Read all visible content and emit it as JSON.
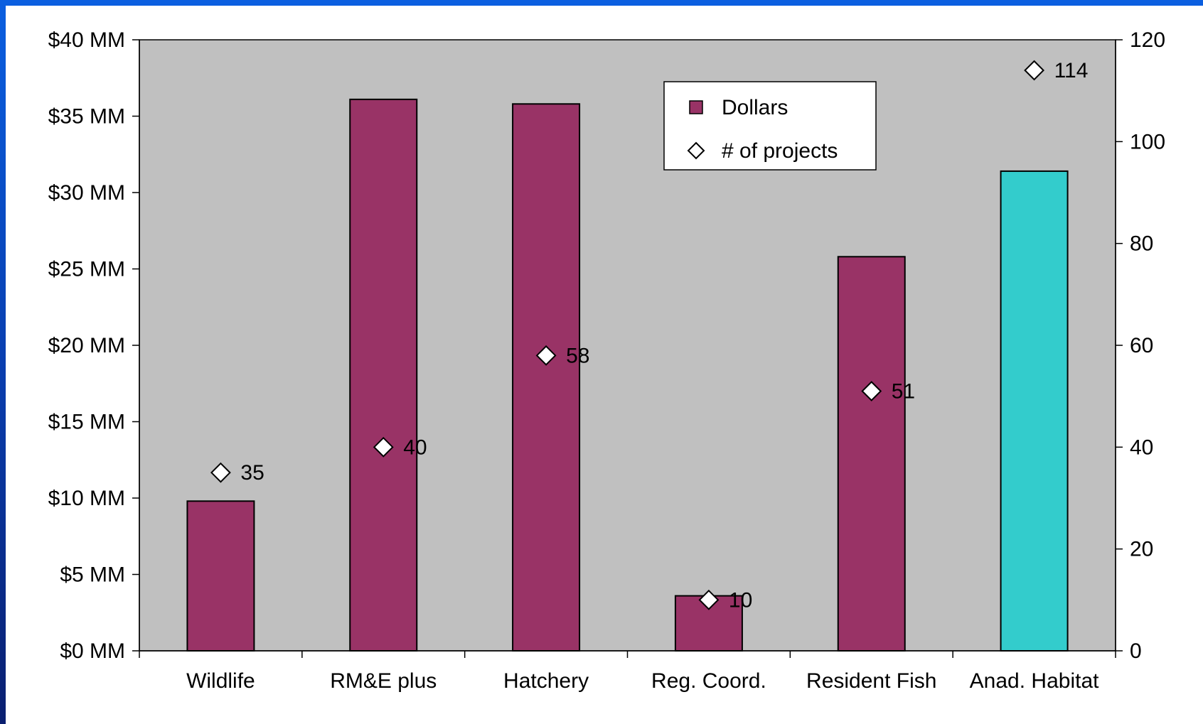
{
  "chart_data": {
    "type": "bar",
    "categories": [
      "Wildlife",
      "RM&E plus",
      "Hatchery",
      "Reg. Coord.",
      "Resident Fish",
      "Anad. Habitat"
    ],
    "series": [
      {
        "name": "Dollars",
        "type": "bar",
        "axis": "left",
        "values": [
          9.8,
          36.1,
          35.8,
          3.6,
          25.8,
          31.4
        ],
        "colors": [
          "#993366",
          "#993366",
          "#993366",
          "#993366",
          "#993366",
          "#33CCCC"
        ]
      },
      {
        "name": "# of projects",
        "type": "scatter",
        "marker": "diamond",
        "axis": "right",
        "values": [
          35,
          40,
          58,
          10,
          51,
          114
        ],
        "labels": [
          "35",
          "40",
          "58",
          "10",
          "51",
          "114"
        ]
      }
    ],
    "y_left": {
      "ylim": [
        0,
        40
      ],
      "ticks": [
        0,
        5,
        10,
        15,
        20,
        25,
        30,
        35,
        40
      ],
      "tick_labels": [
        "$0 MM",
        "$5 MM",
        "$10 MM",
        "$15 MM",
        "$20 MM",
        "$25 MM",
        "$30 MM",
        "$35 MM",
        "$40 MM"
      ]
    },
    "y_right": {
      "ylim": [
        0,
        120
      ],
      "ticks": [
        0,
        20,
        40,
        60,
        80,
        100,
        120
      ],
      "tick_labels": [
        "0",
        "20",
        "40",
        "60",
        "80",
        "100",
        "120"
      ]
    },
    "title": "",
    "xlabel": "",
    "ylabel": "",
    "grid": false,
    "legend": {
      "placement": "top-right",
      "entries": [
        "Dollars",
        "# of projects"
      ]
    },
    "colors": {
      "plot_background": "#C0C0C0",
      "bar": "#993366",
      "bar_highlight": "#33CCCC",
      "marker_fill": "#FFFFFF",
      "marker_stroke": "#000000"
    }
  }
}
